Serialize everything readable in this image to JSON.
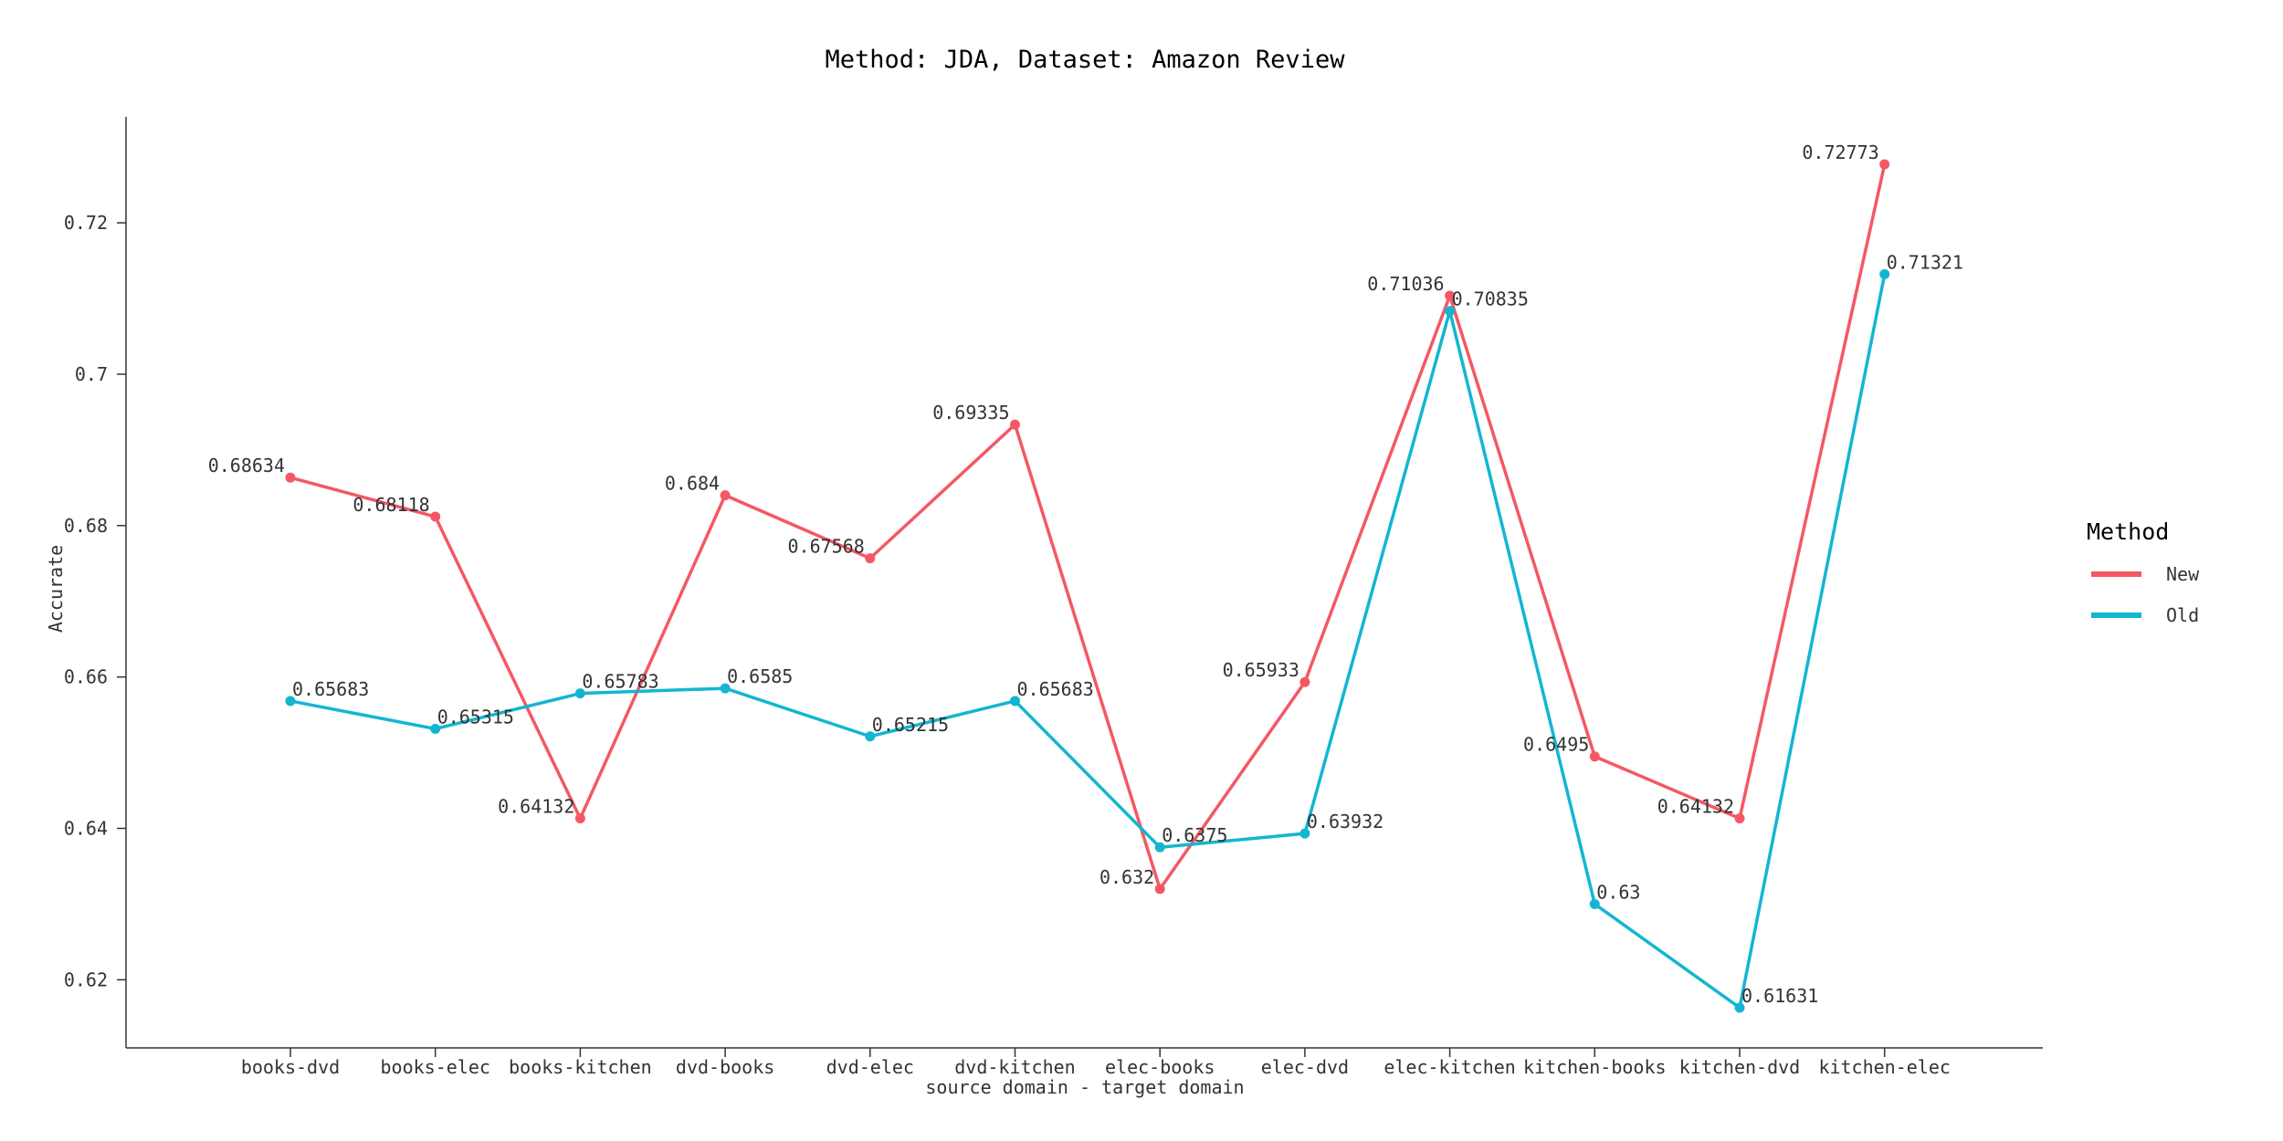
{
  "chart_data": {
    "type": "line",
    "title": "Method: JDA, Dataset: Amazon Review",
    "xlabel": "source domain - target domain",
    "ylabel": "Accurate",
    "categories": [
      "books-dvd",
      "books-elec",
      "books-kitchen",
      "dvd-books",
      "dvd-elec",
      "dvd-kitchen",
      "elec-books",
      "elec-dvd",
      "elec-kitchen",
      "kitchen-books",
      "kitchen-dvd",
      "kitchen-elec"
    ],
    "ylim": [
      0.611,
      0.734
    ],
    "yticks": [
      0.62,
      0.64,
      0.66,
      0.68,
      0.7,
      0.72
    ],
    "ytick_labels": [
      "0.62",
      "0.64",
      "0.66",
      "0.68",
      "0.7",
      "0.72"
    ],
    "grid": false,
    "legend": {
      "title": "Method",
      "position": "right"
    },
    "series": [
      {
        "name": "New",
        "color": "#f45865",
        "values": [
          0.68634,
          0.68118,
          0.64132,
          0.684,
          0.67568,
          0.69335,
          0.632,
          0.65933,
          0.71036,
          0.6495,
          0.64132,
          0.72773
        ],
        "labels": [
          "0.68634",
          "0.68118",
          "0.64132",
          "0.684",
          "0.67568",
          "0.69335",
          "0.632",
          "0.65933",
          "0.71036",
          "0.6495",
          "0.64132",
          "0.72773"
        ]
      },
      {
        "name": "Old",
        "color": "#13b6d0",
        "values": [
          0.65683,
          0.65315,
          0.65783,
          0.6585,
          0.65215,
          0.65683,
          0.6375,
          0.63932,
          0.70835,
          0.63,
          0.61631,
          0.71321
        ],
        "labels": [
          "0.65683",
          "0.65315",
          "0.65783",
          "0.6585",
          "0.65215",
          "0.65683",
          "0.6375",
          "0.63932",
          "0.70835",
          "0.63",
          "0.61631",
          "0.71321"
        ]
      }
    ]
  }
}
